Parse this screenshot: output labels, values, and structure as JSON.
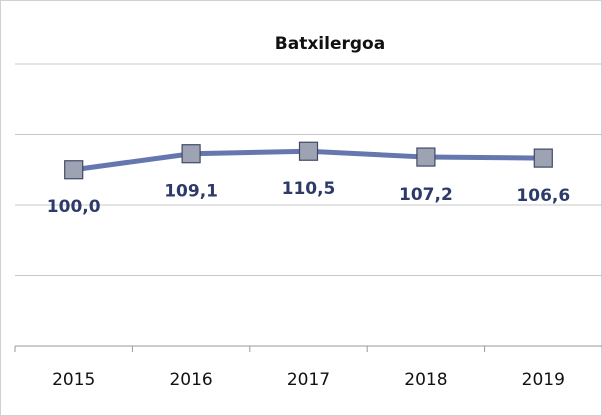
{
  "chart_data": {
    "type": "line",
    "title": "Batxilergoa",
    "categories": [
      "2015",
      "2016",
      "2017",
      "2018",
      "2019"
    ],
    "series": [
      {
        "name": null,
        "color": "#6677b0",
        "marker_color": "#9ea3b3",
        "values": [
          100.0,
          109.1,
          110.5,
          107.2,
          106.6
        ],
        "value_labels": [
          "100,0",
          "109,1",
          "110,5",
          "107,2",
          "106,6"
        ]
      }
    ],
    "ylim": [
      0,
      190
    ],
    "yticks": [
      0,
      40,
      80,
      120,
      160
    ],
    "grid": true
  }
}
